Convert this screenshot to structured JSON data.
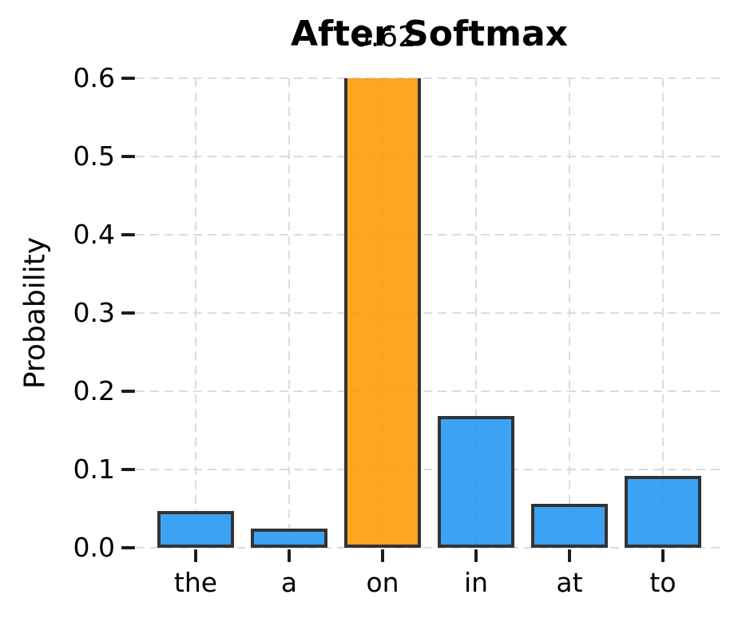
{
  "chart_data": {
    "type": "bar",
    "title": "After Softmax",
    "ylabel": "Probability",
    "xlabel": "",
    "categories": [
      "the",
      "a",
      "on",
      "in",
      "at",
      "to"
    ],
    "values": [
      0.047,
      0.024,
      0.62,
      0.168,
      0.056,
      0.092
    ],
    "highlight": {
      "index": 2,
      "label": "0.62"
    },
    "ylim": [
      0,
      0.6
    ],
    "yticks": [
      "0.0",
      "0.1",
      "0.2",
      "0.3",
      "0.4",
      "0.5",
      "0.6"
    ],
    "grid": "dashed, horizontal and vertical, drawn under semi-transparent bars",
    "legend": "none"
  },
  "style": {
    "bar_fill_default": "#2196F3",
    "bar_fill_highlight": "#FF9800",
    "bar_edge": "#333333",
    "grid_color": "#DCDCDC",
    "tick_color": "#1C1C1C",
    "text_color": "#000000",
    "background": "#FFFFFF"
  }
}
